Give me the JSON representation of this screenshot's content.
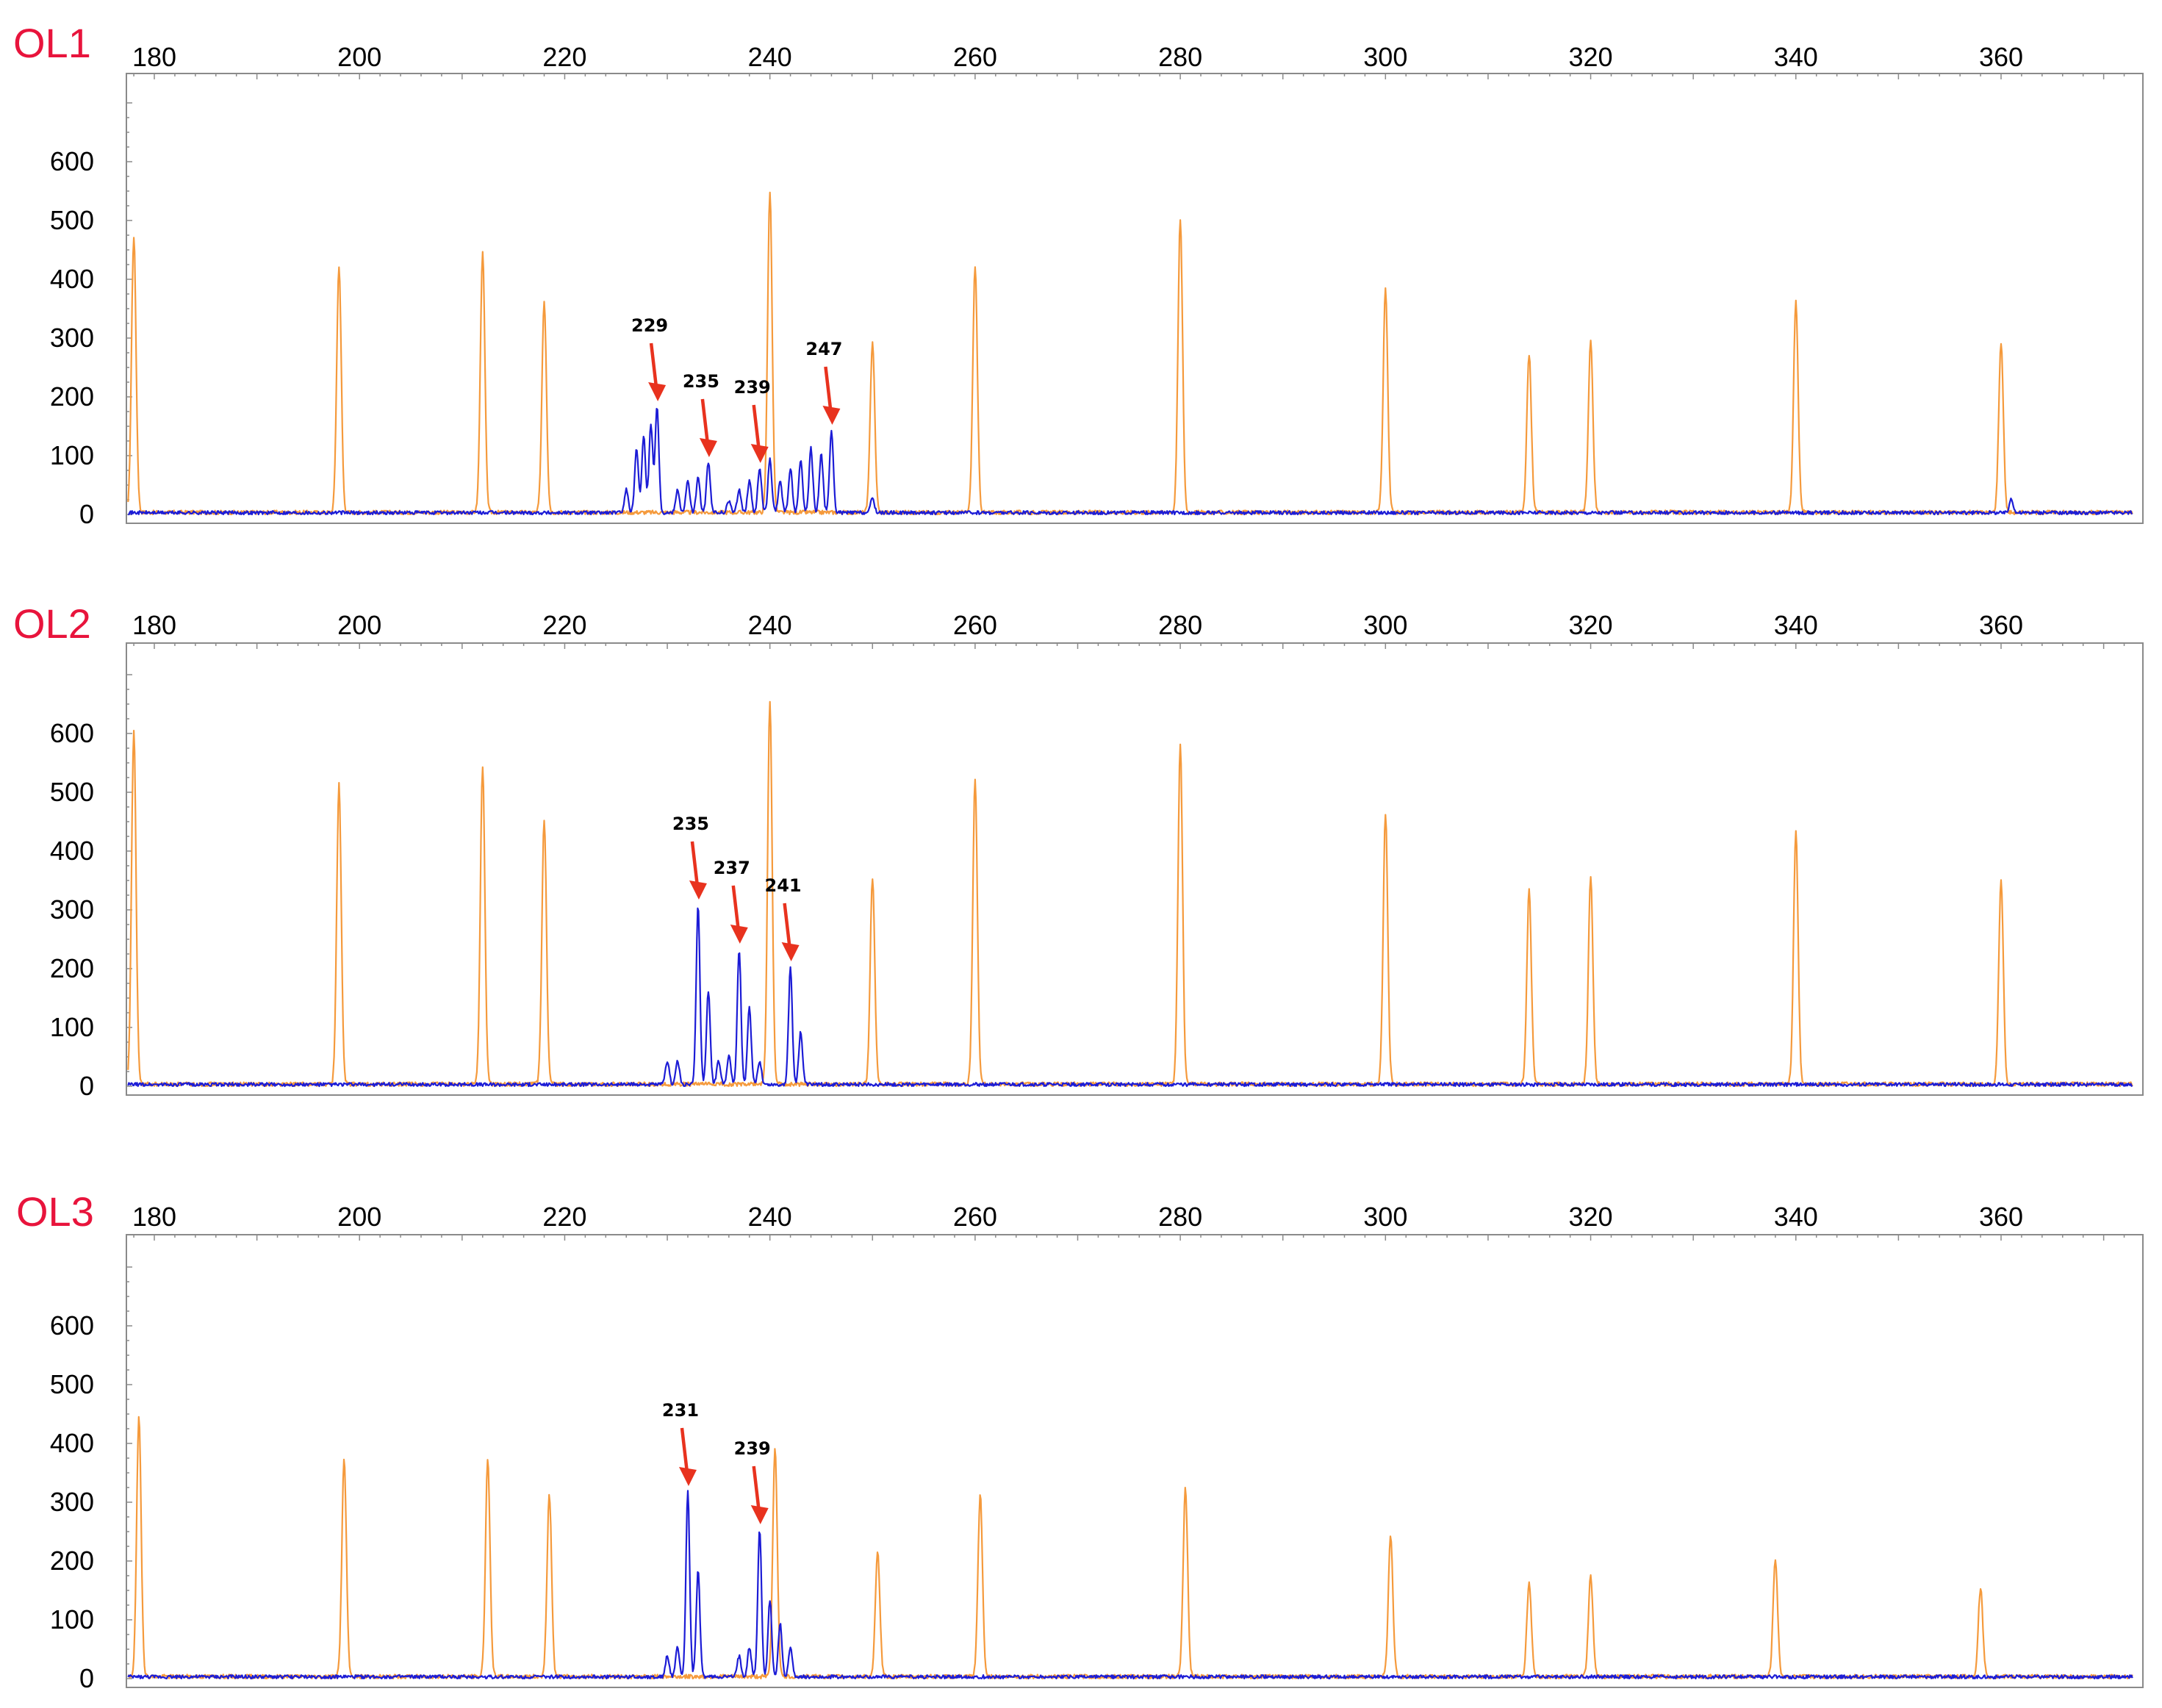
{
  "chart_data": [
    {
      "type": "line",
      "panel_label": "OL1",
      "x_ticks": [
        "180",
        "200",
        "220",
        "240",
        "260",
        "280",
        "300",
        "320",
        "340",
        "360"
      ],
      "y_ticks": [
        "0",
        "100",
        "200",
        "300",
        "400",
        "500",
        "600"
      ],
      "xlim": [
        177,
        373
      ],
      "ylim": [
        0,
        720
      ],
      "size_standard": {
        "color": "#f59a3c",
        "peaks": [
          [
            178,
            470
          ],
          [
            198,
            420
          ],
          [
            212,
            440
          ],
          [
            218,
            360
          ],
          [
            240,
            545
          ],
          [
            250,
            290
          ],
          [
            260,
            420
          ],
          [
            280,
            500
          ],
          [
            300,
            380
          ],
          [
            314,
            270
          ],
          [
            320,
            290
          ],
          [
            340,
            360
          ],
          [
            360,
            290
          ]
        ]
      },
      "sample": {
        "color": "#1c1cd6",
        "peaks": [
          [
            226,
            40
          ],
          [
            227,
            110
          ],
          [
            227.7,
            130
          ],
          [
            228.4,
            150
          ],
          [
            229,
            180
          ],
          [
            231,
            40
          ],
          [
            232,
            55
          ],
          [
            233,
            60
          ],
          [
            234,
            85
          ],
          [
            236,
            20
          ],
          [
            237,
            40
          ],
          [
            238,
            55
          ],
          [
            239,
            75
          ],
          [
            240,
            90
          ],
          [
            241,
            55
          ],
          [
            242,
            75
          ],
          [
            243,
            90
          ],
          [
            244,
            110
          ],
          [
            245,
            100
          ],
          [
            246,
            140
          ],
          [
            250,
            25
          ],
          [
            361,
            25
          ]
        ]
      },
      "annotations": [
        {
          "text": "229",
          "x": 229,
          "y": 180
        },
        {
          "text": "235",
          "x": 234,
          "y": 85
        },
        {
          "text": "239",
          "x": 239,
          "y": 75
        },
        {
          "text": "247",
          "x": 246,
          "y": 140
        }
      ]
    },
    {
      "type": "line",
      "panel_label": "OL2",
      "x_ticks": [
        "180",
        "200",
        "220",
        "240",
        "260",
        "280",
        "300",
        "320",
        "340",
        "360"
      ],
      "y_ticks": [
        "0",
        "100",
        "200",
        "300",
        "400",
        "500",
        "600"
      ],
      "xlim": [
        177,
        373
      ],
      "ylim": [
        0,
        720
      ],
      "size_standard": {
        "color": "#f59a3c",
        "peaks": [
          [
            178,
            600
          ],
          [
            198,
            510
          ],
          [
            212,
            540
          ],
          [
            218,
            450
          ],
          [
            240,
            650
          ],
          [
            250,
            350
          ],
          [
            260,
            520
          ],
          [
            280,
            580
          ],
          [
            300,
            460
          ],
          [
            314,
            330
          ],
          [
            320,
            350
          ],
          [
            340,
            430
          ],
          [
            360,
            345
          ]
        ]
      },
      "sample": {
        "color": "#1c1cd6",
        "peaks": [
          [
            230,
            40
          ],
          [
            231,
            40
          ],
          [
            233,
            305
          ],
          [
            234,
            160
          ],
          [
            235,
            40
          ],
          [
            236,
            50
          ],
          [
            237,
            230
          ],
          [
            238,
            130
          ],
          [
            239,
            40
          ],
          [
            242,
            200
          ],
          [
            243,
            90
          ]
        ]
      },
      "annotations": [
        {
          "text": "235",
          "x": 233,
          "y": 305
        },
        {
          "text": "237",
          "x": 237,
          "y": 230
        },
        {
          "text": "241",
          "x": 242,
          "y": 200
        }
      ]
    },
    {
      "type": "line",
      "panel_label": "OL3",
      "x_ticks": [
        "180",
        "200",
        "220",
        "240",
        "260",
        "280",
        "300",
        "320",
        "340",
        "360"
      ],
      "y_ticks": [
        "0",
        "100",
        "200",
        "300",
        "400",
        "500",
        "600"
      ],
      "xlim": [
        177,
        373
      ],
      "ylim": [
        0,
        720
      ],
      "size_standard": {
        "color": "#f59a3c",
        "peaks": [
          [
            178.5,
            440
          ],
          [
            198.5,
            370
          ],
          [
            212.5,
            370
          ],
          [
            218.5,
            310
          ],
          [
            240.5,
            390
          ],
          [
            250.5,
            210
          ],
          [
            260.5,
            310
          ],
          [
            280.5,
            320
          ],
          [
            300.5,
            240
          ],
          [
            314,
            160
          ],
          [
            320,
            170
          ],
          [
            338,
            200
          ],
          [
            358,
            150
          ]
        ]
      },
      "sample": {
        "color": "#1c1cd6",
        "peaks": [
          [
            230,
            35
          ],
          [
            231,
            50
          ],
          [
            232,
            315
          ],
          [
            233,
            180
          ],
          [
            237,
            35
          ],
          [
            238,
            50
          ],
          [
            239,
            250
          ],
          [
            240,
            130
          ],
          [
            241,
            90
          ],
          [
            242,
            50
          ]
        ]
      },
      "annotations": [
        {
          "text": "231",
          "x": 232,
          "y": 315
        },
        {
          "text": "239",
          "x": 239,
          "y": 250
        }
      ]
    }
  ]
}
